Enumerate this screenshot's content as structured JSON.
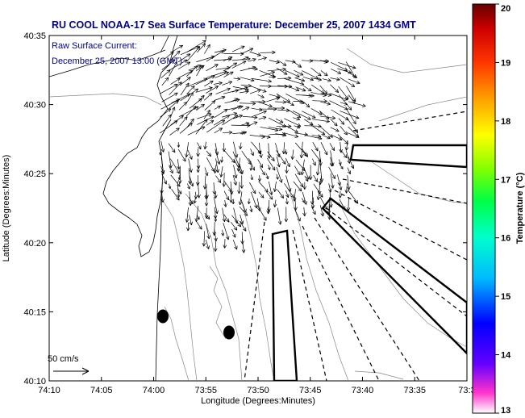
{
  "title": "RU COOL  NOAA-17  Sea Surface Temperature:  December 25, 2007 1434 GMT",
  "annotation": {
    "line1": "Raw Surface Current:",
    "line2": "December 25, 2007 13:00 (GMT)"
  },
  "axes": {
    "xlabel": "Longitude (Degrees:Minutes)",
    "ylabel": "Latitude (Degrees:Minutes)",
    "x_ticks": [
      "74:10",
      "74:05",
      "74:00",
      "73:55",
      "73:50",
      "73:45",
      "73:40",
      "73:35",
      "73:3"
    ],
    "y_ticks": [
      "40:35",
      "40:30",
      "40:25",
      "40:20",
      "40:15",
      "40:10"
    ]
  },
  "scale": {
    "label": "50 cm/s"
  },
  "colorbar": {
    "label": "Temperature (°C)",
    "ticks": [
      "20",
      "19",
      "18",
      "17",
      "16",
      "15",
      "14",
      "13"
    ],
    "range": [
      13,
      20
    ],
    "colors": [
      "#ff33cc",
      "#6600ff",
      "#0000ff",
      "#00bbff",
      "#00ffcc",
      "#00ff44",
      "#88ff00",
      "#ffff00",
      "#ffaa00",
      "#ff3300",
      "#cc0000",
      "#660000"
    ]
  },
  "colors": {
    "title": "#00008b",
    "vectors": "#000000",
    "contours": "#777777"
  }
}
